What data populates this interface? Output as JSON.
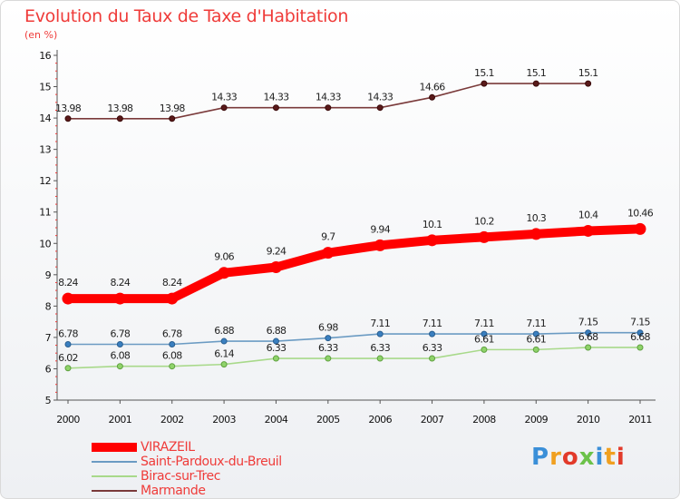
{
  "header": {
    "title": "Evolution du Taux de Taxe d'Habitation",
    "unit": "(en %)"
  },
  "chart_data": {
    "type": "line",
    "x": [
      "2000",
      "2001",
      "2002",
      "2003",
      "2004",
      "2005",
      "2006",
      "2007",
      "2008",
      "2009",
      "2010",
      "2011"
    ],
    "ylim": [
      5,
      16
    ],
    "yticks": [
      5,
      6,
      7,
      8,
      9,
      10,
      11,
      12,
      13,
      14,
      15,
      16
    ],
    "grid": false,
    "legend_position": "bottom-left",
    "series": [
      {
        "name": "VIRAZEIL",
        "color": "#ff0000",
        "values": [
          8.24,
          8.24,
          8.24,
          9.06,
          9.24,
          9.7,
          9.94,
          10.1,
          10.2,
          10.3,
          10.4,
          10.46
        ],
        "labels": [
          "8.24",
          "8.24",
          "8.24",
          "9.06",
          "9.24",
          "9.7",
          "9.94",
          "10.1",
          "10.2",
          "10.3",
          "10.4",
          "10.46"
        ]
      },
      {
        "name": "Saint-Pardoux-du-Breuil",
        "color": "#6b9bc3",
        "values": [
          6.78,
          6.78,
          6.78,
          6.88,
          6.88,
          6.98,
          7.11,
          7.11,
          7.11,
          7.11,
          7.15,
          7.15
        ],
        "labels": [
          "6.78",
          "6.78",
          "6.78",
          "6.88",
          "6.88",
          "6.98",
          "7.11",
          "7.11",
          "7.11",
          "7.11",
          "7.15",
          "7.15"
        ]
      },
      {
        "name": "Birac-sur-Trec",
        "color": "#a8d98a",
        "values": [
          6.02,
          6.08,
          6.08,
          6.14,
          6.33,
          6.33,
          6.33,
          6.33,
          6.61,
          6.61,
          6.68,
          6.68
        ],
        "labels": [
          "6.02",
          "6.08",
          "6.08",
          "6.14",
          "6.33",
          "6.33",
          "6.33",
          "6.33",
          "6.61",
          "6.61",
          "6.68",
          "6.68"
        ]
      },
      {
        "name": "Marmande",
        "color": "#7a3a3a",
        "values": [
          13.98,
          13.98,
          13.98,
          14.33,
          14.33,
          14.33,
          14.33,
          14.66,
          15.1,
          15.1,
          15.1,
          null
        ],
        "labels": [
          "13.98",
          "13.98",
          "13.98",
          "14.33",
          "14.33",
          "14.33",
          "14.33",
          "14.66",
          "15.1",
          "15.1",
          "15.1",
          ""
        ]
      }
    ]
  },
  "brand": {
    "letters": [
      "P",
      "r",
      "o",
      "x",
      "i",
      "t",
      "i"
    ],
    "colors": [
      "#3a8fd8",
      "#f0a020",
      "#e23a2a",
      "#6cc24a",
      "#3a8fd8",
      "#f0a020",
      "#e23a2a"
    ]
  }
}
